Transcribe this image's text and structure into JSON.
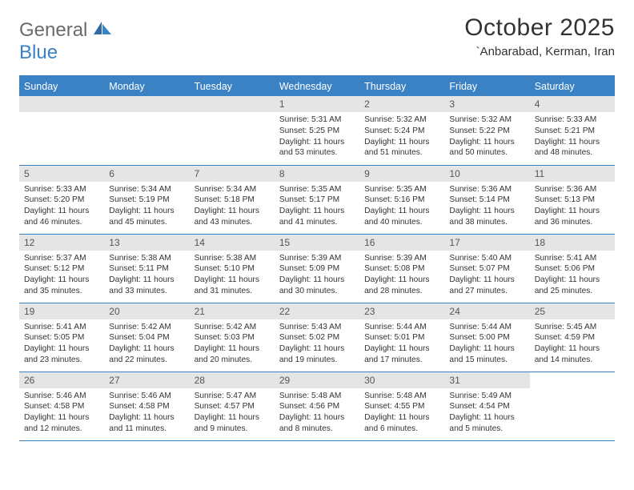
{
  "logo": {
    "text1": "General",
    "text2": "Blue"
  },
  "title": "October 2025",
  "location": "`Anbarabad, Kerman, Iran",
  "colors": {
    "header_bg": "#3b82c4",
    "header_text": "#ffffff",
    "daynum_bg": "#e5e5e5",
    "body_text": "#333333",
    "logo_gray": "#6a6a6a",
    "logo_blue": "#3b82c4"
  },
  "weekdays": [
    "Sunday",
    "Monday",
    "Tuesday",
    "Wednesday",
    "Thursday",
    "Friday",
    "Saturday"
  ],
  "cells": [
    {
      "n": "",
      "d": ""
    },
    {
      "n": "",
      "d": ""
    },
    {
      "n": "",
      "d": ""
    },
    {
      "n": "1",
      "d": "Sunrise: 5:31 AM\nSunset: 5:25 PM\nDaylight: 11 hours and 53 minutes."
    },
    {
      "n": "2",
      "d": "Sunrise: 5:32 AM\nSunset: 5:24 PM\nDaylight: 11 hours and 51 minutes."
    },
    {
      "n": "3",
      "d": "Sunrise: 5:32 AM\nSunset: 5:22 PM\nDaylight: 11 hours and 50 minutes."
    },
    {
      "n": "4",
      "d": "Sunrise: 5:33 AM\nSunset: 5:21 PM\nDaylight: 11 hours and 48 minutes."
    },
    {
      "n": "5",
      "d": "Sunrise: 5:33 AM\nSunset: 5:20 PM\nDaylight: 11 hours and 46 minutes."
    },
    {
      "n": "6",
      "d": "Sunrise: 5:34 AM\nSunset: 5:19 PM\nDaylight: 11 hours and 45 minutes."
    },
    {
      "n": "7",
      "d": "Sunrise: 5:34 AM\nSunset: 5:18 PM\nDaylight: 11 hours and 43 minutes."
    },
    {
      "n": "8",
      "d": "Sunrise: 5:35 AM\nSunset: 5:17 PM\nDaylight: 11 hours and 41 minutes."
    },
    {
      "n": "9",
      "d": "Sunrise: 5:35 AM\nSunset: 5:16 PM\nDaylight: 11 hours and 40 minutes."
    },
    {
      "n": "10",
      "d": "Sunrise: 5:36 AM\nSunset: 5:14 PM\nDaylight: 11 hours and 38 minutes."
    },
    {
      "n": "11",
      "d": "Sunrise: 5:36 AM\nSunset: 5:13 PM\nDaylight: 11 hours and 36 minutes."
    },
    {
      "n": "12",
      "d": "Sunrise: 5:37 AM\nSunset: 5:12 PM\nDaylight: 11 hours and 35 minutes."
    },
    {
      "n": "13",
      "d": "Sunrise: 5:38 AM\nSunset: 5:11 PM\nDaylight: 11 hours and 33 minutes."
    },
    {
      "n": "14",
      "d": "Sunrise: 5:38 AM\nSunset: 5:10 PM\nDaylight: 11 hours and 31 minutes."
    },
    {
      "n": "15",
      "d": "Sunrise: 5:39 AM\nSunset: 5:09 PM\nDaylight: 11 hours and 30 minutes."
    },
    {
      "n": "16",
      "d": "Sunrise: 5:39 AM\nSunset: 5:08 PM\nDaylight: 11 hours and 28 minutes."
    },
    {
      "n": "17",
      "d": "Sunrise: 5:40 AM\nSunset: 5:07 PM\nDaylight: 11 hours and 27 minutes."
    },
    {
      "n": "18",
      "d": "Sunrise: 5:41 AM\nSunset: 5:06 PM\nDaylight: 11 hours and 25 minutes."
    },
    {
      "n": "19",
      "d": "Sunrise: 5:41 AM\nSunset: 5:05 PM\nDaylight: 11 hours and 23 minutes."
    },
    {
      "n": "20",
      "d": "Sunrise: 5:42 AM\nSunset: 5:04 PM\nDaylight: 11 hours and 22 minutes."
    },
    {
      "n": "21",
      "d": "Sunrise: 5:42 AM\nSunset: 5:03 PM\nDaylight: 11 hours and 20 minutes."
    },
    {
      "n": "22",
      "d": "Sunrise: 5:43 AM\nSunset: 5:02 PM\nDaylight: 11 hours and 19 minutes."
    },
    {
      "n": "23",
      "d": "Sunrise: 5:44 AM\nSunset: 5:01 PM\nDaylight: 11 hours and 17 minutes."
    },
    {
      "n": "24",
      "d": "Sunrise: 5:44 AM\nSunset: 5:00 PM\nDaylight: 11 hours and 15 minutes."
    },
    {
      "n": "25",
      "d": "Sunrise: 5:45 AM\nSunset: 4:59 PM\nDaylight: 11 hours and 14 minutes."
    },
    {
      "n": "26",
      "d": "Sunrise: 5:46 AM\nSunset: 4:58 PM\nDaylight: 11 hours and 12 minutes."
    },
    {
      "n": "27",
      "d": "Sunrise: 5:46 AM\nSunset: 4:58 PM\nDaylight: 11 hours and 11 minutes."
    },
    {
      "n": "28",
      "d": "Sunrise: 5:47 AM\nSunset: 4:57 PM\nDaylight: 11 hours and 9 minutes."
    },
    {
      "n": "29",
      "d": "Sunrise: 5:48 AM\nSunset: 4:56 PM\nDaylight: 11 hours and 8 minutes."
    },
    {
      "n": "30",
      "d": "Sunrise: 5:48 AM\nSunset: 4:55 PM\nDaylight: 11 hours and 6 minutes."
    },
    {
      "n": "31",
      "d": "Sunrise: 5:49 AM\nSunset: 4:54 PM\nDaylight: 11 hours and 5 minutes."
    },
    {
      "n": "",
      "d": ""
    }
  ]
}
